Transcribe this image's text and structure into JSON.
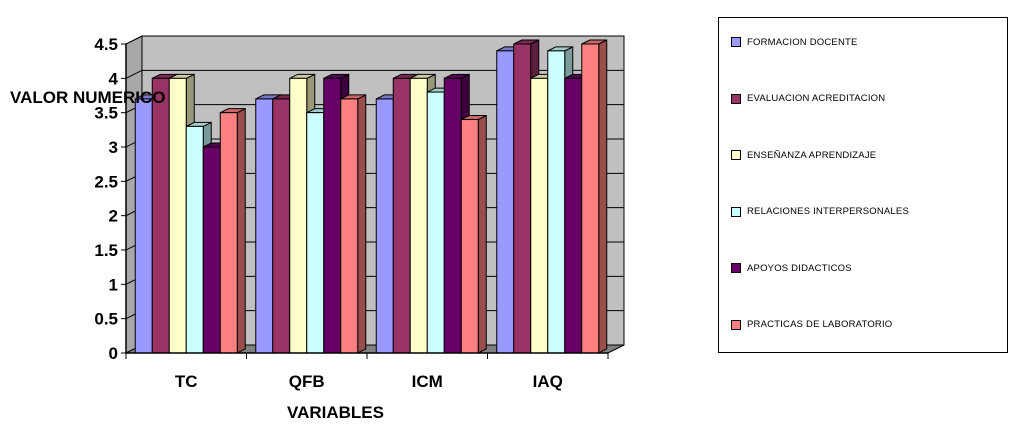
{
  "chart_data": {
    "type": "bar",
    "title": "",
    "xlabel": "VARIABLES",
    "ylabel": "VALOR NUMERICO",
    "categories": [
      "TC",
      "QFB",
      "ICM",
      "IAQ"
    ],
    "ylim": [
      0,
      4.5
    ],
    "yticks": [
      "0",
      "0.5",
      "1",
      "1.5",
      "2",
      "2.5",
      "3",
      "3.5",
      "4",
      "4.5"
    ],
    "grid": true,
    "legend_position": "right",
    "series": [
      {
        "name": "FORMACION DOCENTE",
        "color": "#9999ff",
        "values": [
          3.7,
          3.7,
          3.7,
          4.4
        ]
      },
      {
        "name": "EVALUACION ACREDITACION",
        "color": "#993366",
        "values": [
          4.0,
          3.7,
          4.0,
          4.5
        ]
      },
      {
        "name": "ENSEÑANZA APRENDIZAJE",
        "color": "#ffffcc",
        "values": [
          4.0,
          4.0,
          4.0,
          4.0
        ]
      },
      {
        "name": "RELACIONES INTERPERSONALES",
        "color": "#ccffff",
        "values": [
          3.3,
          3.5,
          3.8,
          4.4
        ]
      },
      {
        "name": "APOYOS DIDACTICOS",
        "color": "#660066",
        "values": [
          3.0,
          4.0,
          4.0,
          4.0
        ]
      },
      {
        "name": "PRACTICAS DE LABORATORIO",
        "color": "#ff8080",
        "values": [
          3.5,
          3.7,
          3.4,
          4.5
        ]
      }
    ]
  }
}
